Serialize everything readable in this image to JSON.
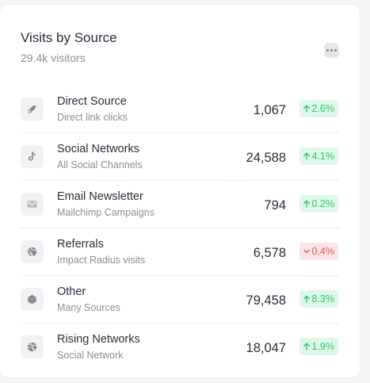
{
  "header": {
    "title": "Visits by Source",
    "subtitle": "29.4k visitors",
    "more_icon": "dots-horizontal-icon"
  },
  "sources": [
    {
      "name": "Direct Source",
      "desc": "Direct link clicks",
      "value": "1,067",
      "change": "2.6%",
      "trend": "up",
      "icon": "rocket-icon"
    },
    {
      "name": "Social Networks",
      "desc": "All Social Channels",
      "value": "24,588",
      "change": "4.1%",
      "trend": "up",
      "icon": "tiktok-icon"
    },
    {
      "name": "Email Newsletter",
      "desc": "Mailchimp Campaigns",
      "value": "794",
      "change": "0.2%",
      "trend": "up",
      "icon": "mail-icon"
    },
    {
      "name": "Referrals",
      "desc": "Impact Radius visits",
      "value": "6,578",
      "change": "0.4%",
      "trend": "down",
      "icon": "globe-icon"
    },
    {
      "name": "Other",
      "desc": "Many Sources",
      "value": "79,458",
      "change": "8.3%",
      "trend": "up",
      "icon": "cube-icon"
    },
    {
      "name": "Rising Networks",
      "desc": "Social Network",
      "value": "18,047",
      "change": "1.9%",
      "trend": "up",
      "icon": "dribbble-icon"
    }
  ],
  "colors": {
    "up": "#28c76f",
    "down": "#ea5455",
    "icon": "#808390"
  }
}
